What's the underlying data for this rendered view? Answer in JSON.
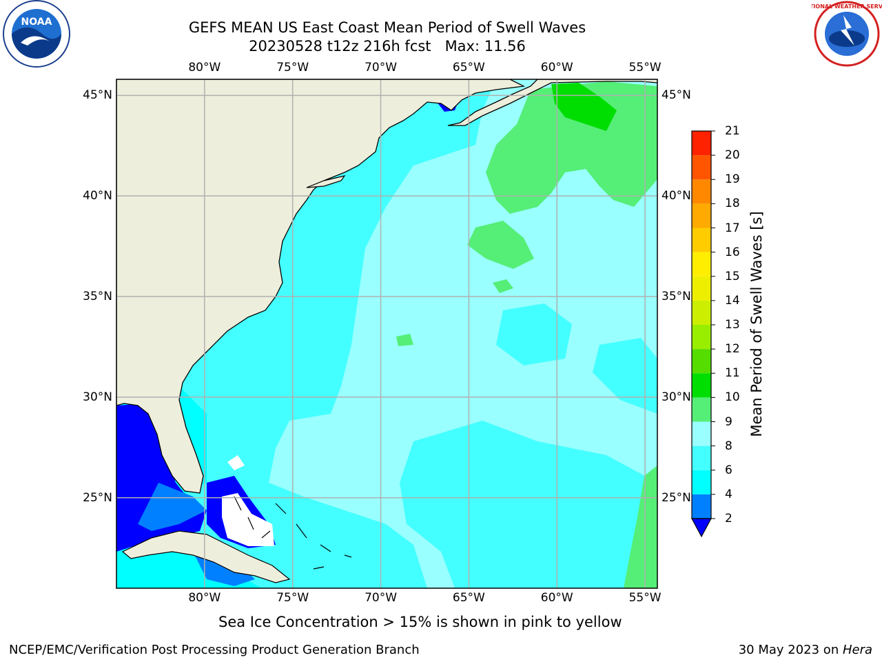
{
  "title": {
    "line1": "GEFS MEAN US East Coast Mean Period of Swell Waves",
    "line2": "20230528 t12z 216h fcst   Max: 11.56"
  },
  "logos": {
    "left": {
      "name": "noaa-logo",
      "text": "NOAA"
    },
    "right": {
      "name": "national-weather-service-logo",
      "text": "NATIONAL WEATHER SERVICE"
    }
  },
  "map": {
    "lon_labels": [
      "80°W",
      "75°W",
      "70°W",
      "65°W",
      "60°W",
      "55°W"
    ],
    "lat_labels": [
      "45°N",
      "40°N",
      "35°N",
      "30°N",
      "25°N"
    ],
    "lon_range": [
      -85,
      -54.3
    ],
    "lat_range": [
      20.5,
      45.8
    ],
    "land_color": "#eeeedc",
    "grid_color": "#b0b0b0",
    "colors": {
      "deep_blue": "#0000ff",
      "blue": "#0080ff",
      "cyan": "#00ffff",
      "cyan_mid": "#44ffff",
      "cyan_light": "#99ffff",
      "green_light": "#55ee77",
      "green": "#00dd00"
    }
  },
  "colorbar": {
    "label": "Mean Period of Swell Waves [s]",
    "ticks": [
      "2",
      "4",
      "6",
      "8",
      "9",
      "10",
      "11",
      "12",
      "13",
      "14",
      "15",
      "16",
      "17",
      "18",
      "19",
      "20",
      "21"
    ],
    "bins": [
      {
        "from": 2,
        "to": 4,
        "color": "#0080ff"
      },
      {
        "from": 4,
        "to": 6,
        "color": "#00ffff"
      },
      {
        "from": 6,
        "to": 8,
        "color": "#44ffff"
      },
      {
        "from": 8,
        "to": 9,
        "color": "#99ffff"
      },
      {
        "from": 9,
        "to": 10,
        "color": "#55ee77"
      },
      {
        "from": 10,
        "to": 11,
        "color": "#00dd00"
      },
      {
        "from": 11,
        "to": 12,
        "color": "#55dd00"
      },
      {
        "from": 12,
        "to": 13,
        "color": "#99ee00"
      },
      {
        "from": 13,
        "to": 14,
        "color": "#ccee00"
      },
      {
        "from": 14,
        "to": 15,
        "color": "#eeee00"
      },
      {
        "from": 15,
        "to": 16,
        "color": "#ffee00"
      },
      {
        "from": 16,
        "to": 17,
        "color": "#ffcc00"
      },
      {
        "from": 17,
        "to": 18,
        "color": "#ffaa00"
      },
      {
        "from": 18,
        "to": 19,
        "color": "#ff8800"
      },
      {
        "from": 19,
        "to": 20,
        "color": "#ff5500"
      },
      {
        "from": 20,
        "to": 21,
        "color": "#ff2200"
      }
    ],
    "under_color": "#0000ff"
  },
  "note": "Sea Ice Concentration > 15% is shown in pink to yellow",
  "footer": {
    "left": "NCEP/EMC/Verification Post Processing Product Generation Branch",
    "date": "30 May 2023 on ",
    "machine": "Hera"
  }
}
